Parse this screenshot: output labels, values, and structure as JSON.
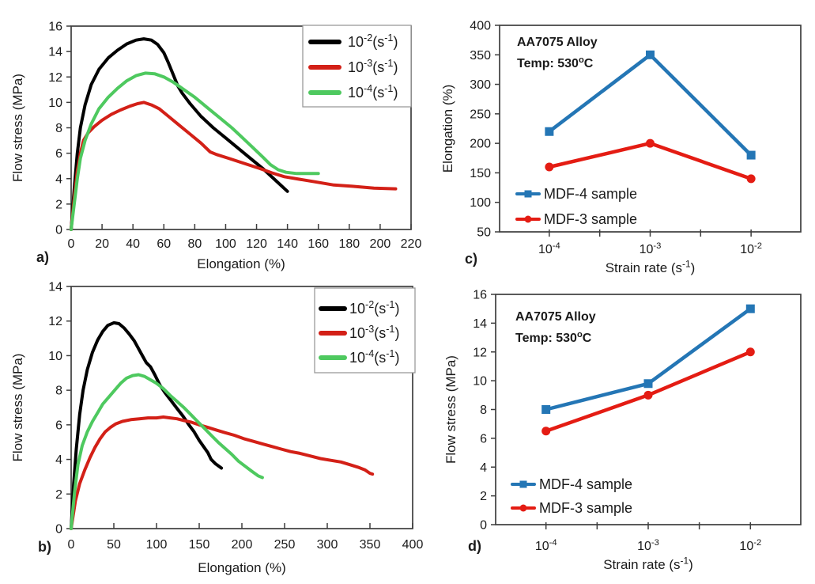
{
  "page": {
    "background": "#ffffff",
    "text_color": "#1a1a1a",
    "frame_color": "#3d3d3d"
  },
  "chart_data": [
    {
      "id": "a",
      "panel_label": "a)",
      "type": "line",
      "title": "",
      "xlabel": "Elongation (%)",
      "ylabel": "Flow stress (MPa)",
      "xlim": [
        0,
        220
      ],
      "ylim": [
        0,
        16
      ],
      "xtick_step": 20,
      "ytick_step": 2,
      "grid": false,
      "legend": {
        "position": "top-right",
        "boxed": true
      },
      "series": [
        {
          "name": "10^{-2}(s^{-1})",
          "color": "#000000",
          "points": [
            [
              0,
              0
            ],
            [
              2,
              3.2
            ],
            [
              4,
              6
            ],
            [
              6,
              8
            ],
            [
              9,
              9.8
            ],
            [
              13,
              11.4
            ],
            [
              18,
              12.6
            ],
            [
              24,
              13.5
            ],
            [
              30,
              14.1
            ],
            [
              36,
              14.6
            ],
            [
              42,
              14.9
            ],
            [
              47,
              15
            ],
            [
              52,
              14.9
            ],
            [
              56,
              14.55
            ],
            [
              60,
              13.9
            ],
            [
              63,
              13.1
            ],
            [
              66,
              12.2
            ],
            [
              69,
              11.3
            ],
            [
              72,
              10.7
            ],
            [
              77,
              9.9
            ],
            [
              84,
              8.9
            ],
            [
              92,
              8
            ],
            [
              100,
              7.2
            ],
            [
              108,
              6.4
            ],
            [
              116,
              5.6
            ],
            [
              124,
              4.8
            ],
            [
              132,
              3.9
            ],
            [
              140,
              3
            ]
          ]
        },
        {
          "name": "10^{-3}(s^{-1})",
          "color": "#d32017",
          "points": [
            [
              0,
              0
            ],
            [
              2,
              2.5
            ],
            [
              4,
              4.6
            ],
            [
              6,
              6
            ],
            [
              8,
              7
            ],
            [
              11,
              7.6
            ],
            [
              15,
              8.1
            ],
            [
              20,
              8.6
            ],
            [
              26,
              9.05
            ],
            [
              32,
              9.4
            ],
            [
              38,
              9.7
            ],
            [
              43,
              9.9
            ],
            [
              47,
              10
            ],
            [
              52,
              9.8
            ],
            [
              57,
              9.5
            ],
            [
              63,
              8.9
            ],
            [
              70,
              8.2
            ],
            [
              77,
              7.5
            ],
            [
              84,
              6.8
            ],
            [
              90,
              6.1
            ],
            [
              94,
              5.9
            ],
            [
              102,
              5.6
            ],
            [
              112,
              5.2
            ],
            [
              122,
              4.8
            ],
            [
              130,
              4.45
            ],
            [
              138,
              4.15
            ],
            [
              148,
              3.95
            ],
            [
              158,
              3.75
            ],
            [
              170,
              3.5
            ],
            [
              182,
              3.4
            ],
            [
              196,
              3.25
            ],
            [
              210,
              3.2
            ]
          ]
        },
        {
          "name": "10^{-4}(s^{-1})",
          "color": "#4ec95f",
          "points": [
            [
              0,
              0
            ],
            [
              2,
              2
            ],
            [
              4,
              4
            ],
            [
              6,
              5.6
            ],
            [
              9,
              7
            ],
            [
              13,
              8.3
            ],
            [
              18,
              9.5
            ],
            [
              24,
              10.4
            ],
            [
              30,
              11.1
            ],
            [
              36,
              11.7
            ],
            [
              42,
              12.1
            ],
            [
              48,
              12.3
            ],
            [
              54,
              12.25
            ],
            [
              60,
              12
            ],
            [
              66,
              11.6
            ],
            [
              73,
              11
            ],
            [
              80,
              10.4
            ],
            [
              88,
              9.6
            ],
            [
              96,
              8.8
            ],
            [
              104,
              8
            ],
            [
              111,
              7.2
            ],
            [
              118,
              6.4
            ],
            [
              124,
              5.7
            ],
            [
              129,
              5.1
            ],
            [
              134,
              4.7
            ],
            [
              139,
              4.5
            ],
            [
              146,
              4.4
            ],
            [
              160,
              4.4
            ]
          ]
        }
      ]
    },
    {
      "id": "b",
      "panel_label": "b)",
      "type": "line",
      "title": "",
      "xlabel": "Elongation (%)",
      "ylabel": "Flow stress (MPa)",
      "xlim": [
        0,
        400
      ],
      "ylim": [
        0,
        14
      ],
      "xtick_step": 50,
      "ytick_step": 2,
      "grid": false,
      "legend": {
        "position": "top-right",
        "boxed": true
      },
      "series": [
        {
          "name": "10^{-2}(s^{-1})",
          "color": "#000000",
          "points": [
            [
              0,
              0
            ],
            [
              3,
              2.6
            ],
            [
              6,
              4.6
            ],
            [
              10,
              6.6
            ],
            [
              14,
              8
            ],
            [
              19,
              9.2
            ],
            [
              25,
              10.2
            ],
            [
              31,
              10.9
            ],
            [
              37,
              11.4
            ],
            [
              43,
              11.75
            ],
            [
              50,
              11.9
            ],
            [
              56,
              11.85
            ],
            [
              62,
              11.6
            ],
            [
              68,
              11.25
            ],
            [
              74,
              10.85
            ],
            [
              79,
              10.4
            ],
            [
              84,
              9.95
            ],
            [
              88,
              9.6
            ],
            [
              93,
              9.35
            ],
            [
              98,
              8.9
            ],
            [
              104,
              8.3
            ],
            [
              110,
              7.85
            ],
            [
              117,
              7.4
            ],
            [
              124,
              6.95
            ],
            [
              131,
              6.5
            ],
            [
              138,
              6
            ],
            [
              144,
              5.6
            ],
            [
              150,
              5.1
            ],
            [
              155,
              4.75
            ],
            [
              160,
              4.4
            ],
            [
              164,
              4
            ],
            [
              169,
              3.75
            ],
            [
              176,
              3.5
            ]
          ]
        },
        {
          "name": "10^{-3}(s^{-1})",
          "color": "#d32017",
          "points": [
            [
              0,
              0
            ],
            [
              5,
              1.6
            ],
            [
              10,
              2.6
            ],
            [
              16,
              3.4
            ],
            [
              22,
              4.1
            ],
            [
              28,
              4.7
            ],
            [
              34,
              5.2
            ],
            [
              40,
              5.6
            ],
            [
              46,
              5.85
            ],
            [
              52,
              6.05
            ],
            [
              60,
              6.2
            ],
            [
              70,
              6.3
            ],
            [
              80,
              6.35
            ],
            [
              90,
              6.4
            ],
            [
              100,
              6.4
            ],
            [
              108,
              6.45
            ],
            [
              116,
              6.4
            ],
            [
              124,
              6.35
            ],
            [
              132,
              6.25
            ],
            [
              141,
              6.15
            ],
            [
              150,
              6
            ],
            [
              160,
              5.85
            ],
            [
              170,
              5.7
            ],
            [
              180,
              5.55
            ],
            [
              191,
              5.4
            ],
            [
              202,
              5.2
            ],
            [
              213,
              5.05
            ],
            [
              224,
              4.9
            ],
            [
              235,
              4.75
            ],
            [
              246,
              4.6
            ],
            [
              257,
              4.45
            ],
            [
              268,
              4.35
            ],
            [
              280,
              4.2
            ],
            [
              292,
              4.05
            ],
            [
              304,
              3.95
            ],
            [
              316,
              3.85
            ],
            [
              326,
              3.7
            ],
            [
              336,
              3.55
            ],
            [
              344,
              3.4
            ],
            [
              350,
              3.2
            ],
            [
              353,
              3.15
            ]
          ]
        },
        {
          "name": "10^{-4}(s^{-1})",
          "color": "#4ec95f",
          "points": [
            [
              0,
              0
            ],
            [
              4,
              2.1
            ],
            [
              8,
              3.7
            ],
            [
              13,
              4.8
            ],
            [
              19,
              5.6
            ],
            [
              25,
              6.2
            ],
            [
              31,
              6.7
            ],
            [
              37,
              7.2
            ],
            [
              44,
              7.6
            ],
            [
              51,
              8
            ],
            [
              58,
              8.4
            ],
            [
              65,
              8.7
            ],
            [
              72,
              8.85
            ],
            [
              79,
              8.9
            ],
            [
              86,
              8.8
            ],
            [
              93,
              8.6
            ],
            [
              100,
              8.4
            ],
            [
              108,
              8.1
            ],
            [
              116,
              7.7
            ],
            [
              124,
              7.35
            ],
            [
              132,
              7
            ],
            [
              140,
              6.6
            ],
            [
              148,
              6.2
            ],
            [
              156,
              5.8
            ],
            [
              164,
              5.4
            ],
            [
              172,
              5
            ],
            [
              180,
              4.65
            ],
            [
              188,
              4.3
            ],
            [
              196,
              3.9
            ],
            [
              204,
              3.6
            ],
            [
              212,
              3.3
            ],
            [
              219,
              3.05
            ],
            [
              224,
              2.95
            ]
          ]
        }
      ]
    },
    {
      "id": "c",
      "panel_label": "c)",
      "type": "line-scatter",
      "title": "",
      "xlabel": "Strain rate (s^{-1})",
      "ylabel": "Elongation (%)",
      "x_categories": [
        "10^{-4}",
        "10^{-3}",
        "10^{-2}"
      ],
      "x_scale": "log",
      "ylim": [
        50,
        400
      ],
      "ytick_step": 50,
      "grid": false,
      "annotations": [
        "AA7075 Alloy",
        "Temp: 530^{o}C"
      ],
      "legend": {
        "position": "bottom-left",
        "boxed": false
      },
      "series": [
        {
          "name": "MDF-4 sample",
          "color": "#2476b5",
          "marker": "square",
          "values": [
            220,
            350,
            180
          ]
        },
        {
          "name": "MDF-3 sample",
          "color": "#e41c13",
          "marker": "circle",
          "values": [
            160,
            200,
            140
          ]
        }
      ]
    },
    {
      "id": "d",
      "panel_label": "d)",
      "type": "line-scatter",
      "title": "",
      "xlabel": "Strain rate (s^{-1})",
      "ylabel": "Flow stress (MPa)",
      "x_categories": [
        "10^{-4}",
        "10^{-3}",
        "10^{-2}"
      ],
      "x_scale": "log",
      "ylim": [
        0,
        16
      ],
      "ytick_step": 2,
      "grid": false,
      "annotations": [
        "AA7075 Alloy",
        "Temp: 530^{o}C"
      ],
      "legend": {
        "position": "bottom-left",
        "boxed": false
      },
      "series": [
        {
          "name": "MDF-4 sample",
          "color": "#2476b5",
          "marker": "square",
          "values": [
            8,
            9.8,
            15
          ]
        },
        {
          "name": "MDF-3 sample",
          "color": "#e41c13",
          "marker": "circle",
          "values": [
            6.5,
            9,
            12
          ]
        }
      ]
    }
  ]
}
